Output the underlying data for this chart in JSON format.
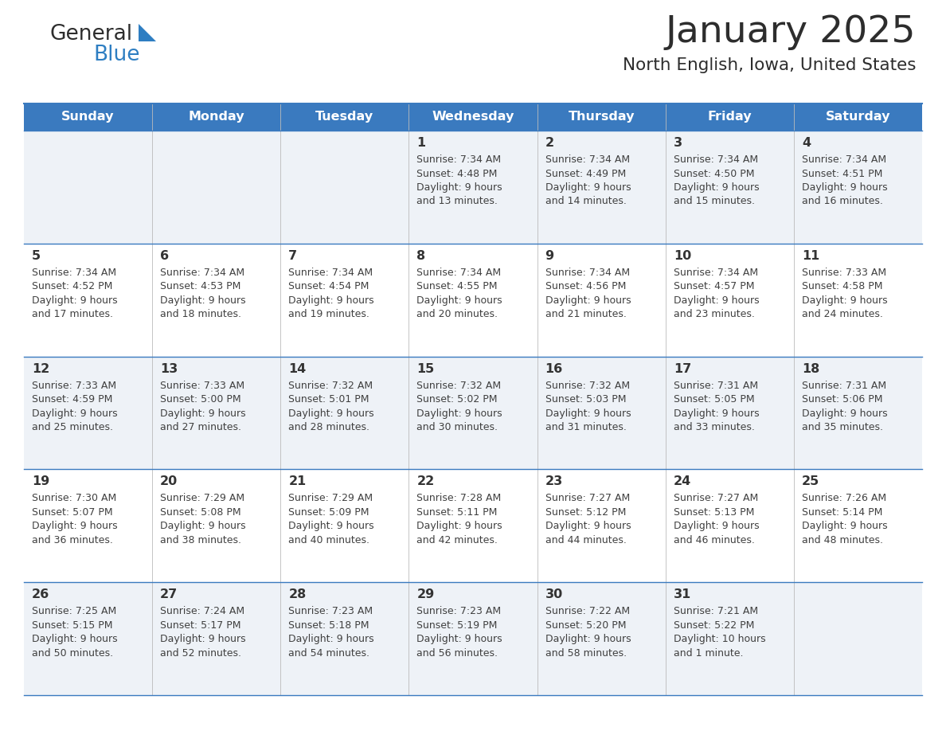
{
  "title": "January 2025",
  "subtitle": "North English, Iowa, United States",
  "header_bg": "#3a7abf",
  "header_text_color": "#ffffff",
  "row0_bg": "#eef2f7",
  "row1_bg": "#ffffff",
  "border_color": "#3a7abf",
  "text_color": "#404040",
  "day_number_color": "#333333",
  "days_of_week": [
    "Sunday",
    "Monday",
    "Tuesday",
    "Wednesday",
    "Thursday",
    "Friday",
    "Saturday"
  ],
  "weeks": [
    [
      {
        "day": "",
        "sunrise": "",
        "sunset": "",
        "daylight": ""
      },
      {
        "day": "",
        "sunrise": "",
        "sunset": "",
        "daylight": ""
      },
      {
        "day": "",
        "sunrise": "",
        "sunset": "",
        "daylight": ""
      },
      {
        "day": "1",
        "sunrise": "7:34 AM",
        "sunset": "4:48 PM",
        "daylight": "9 hours",
        "daylight2": "and 13 minutes."
      },
      {
        "day": "2",
        "sunrise": "7:34 AM",
        "sunset": "4:49 PM",
        "daylight": "9 hours",
        "daylight2": "and 14 minutes."
      },
      {
        "day": "3",
        "sunrise": "7:34 AM",
        "sunset": "4:50 PM",
        "daylight": "9 hours",
        "daylight2": "and 15 minutes."
      },
      {
        "day": "4",
        "sunrise": "7:34 AM",
        "sunset": "4:51 PM",
        "daylight": "9 hours",
        "daylight2": "and 16 minutes."
      }
    ],
    [
      {
        "day": "5",
        "sunrise": "7:34 AM",
        "sunset": "4:52 PM",
        "daylight": "9 hours",
        "daylight2": "and 17 minutes."
      },
      {
        "day": "6",
        "sunrise": "7:34 AM",
        "sunset": "4:53 PM",
        "daylight": "9 hours",
        "daylight2": "and 18 minutes."
      },
      {
        "day": "7",
        "sunrise": "7:34 AM",
        "sunset": "4:54 PM",
        "daylight": "9 hours",
        "daylight2": "and 19 minutes."
      },
      {
        "day": "8",
        "sunrise": "7:34 AM",
        "sunset": "4:55 PM",
        "daylight": "9 hours",
        "daylight2": "and 20 minutes."
      },
      {
        "day": "9",
        "sunrise": "7:34 AM",
        "sunset": "4:56 PM",
        "daylight": "9 hours",
        "daylight2": "and 21 minutes."
      },
      {
        "day": "10",
        "sunrise": "7:34 AM",
        "sunset": "4:57 PM",
        "daylight": "9 hours",
        "daylight2": "and 23 minutes."
      },
      {
        "day": "11",
        "sunrise": "7:33 AM",
        "sunset": "4:58 PM",
        "daylight": "9 hours",
        "daylight2": "and 24 minutes."
      }
    ],
    [
      {
        "day": "12",
        "sunrise": "7:33 AM",
        "sunset": "4:59 PM",
        "daylight": "9 hours",
        "daylight2": "and 25 minutes."
      },
      {
        "day": "13",
        "sunrise": "7:33 AM",
        "sunset": "5:00 PM",
        "daylight": "9 hours",
        "daylight2": "and 27 minutes."
      },
      {
        "day": "14",
        "sunrise": "7:32 AM",
        "sunset": "5:01 PM",
        "daylight": "9 hours",
        "daylight2": "and 28 minutes."
      },
      {
        "day": "15",
        "sunrise": "7:32 AM",
        "sunset": "5:02 PM",
        "daylight": "9 hours",
        "daylight2": "and 30 minutes."
      },
      {
        "day": "16",
        "sunrise": "7:32 AM",
        "sunset": "5:03 PM",
        "daylight": "9 hours",
        "daylight2": "and 31 minutes."
      },
      {
        "day": "17",
        "sunrise": "7:31 AM",
        "sunset": "5:05 PM",
        "daylight": "9 hours",
        "daylight2": "and 33 minutes."
      },
      {
        "day": "18",
        "sunrise": "7:31 AM",
        "sunset": "5:06 PM",
        "daylight": "9 hours",
        "daylight2": "and 35 minutes."
      }
    ],
    [
      {
        "day": "19",
        "sunrise": "7:30 AM",
        "sunset": "5:07 PM",
        "daylight": "9 hours",
        "daylight2": "and 36 minutes."
      },
      {
        "day": "20",
        "sunrise": "7:29 AM",
        "sunset": "5:08 PM",
        "daylight": "9 hours",
        "daylight2": "and 38 minutes."
      },
      {
        "day": "21",
        "sunrise": "7:29 AM",
        "sunset": "5:09 PM",
        "daylight": "9 hours",
        "daylight2": "and 40 minutes."
      },
      {
        "day": "22",
        "sunrise": "7:28 AM",
        "sunset": "5:11 PM",
        "daylight": "9 hours",
        "daylight2": "and 42 minutes."
      },
      {
        "day": "23",
        "sunrise": "7:27 AM",
        "sunset": "5:12 PM",
        "daylight": "9 hours",
        "daylight2": "and 44 minutes."
      },
      {
        "day": "24",
        "sunrise": "7:27 AM",
        "sunset": "5:13 PM",
        "daylight": "9 hours",
        "daylight2": "and 46 minutes."
      },
      {
        "day": "25",
        "sunrise": "7:26 AM",
        "sunset": "5:14 PM",
        "daylight": "9 hours",
        "daylight2": "and 48 minutes."
      }
    ],
    [
      {
        "day": "26",
        "sunrise": "7:25 AM",
        "sunset": "5:15 PM",
        "daylight": "9 hours",
        "daylight2": "and 50 minutes."
      },
      {
        "day": "27",
        "sunrise": "7:24 AM",
        "sunset": "5:17 PM",
        "daylight": "9 hours",
        "daylight2": "and 52 minutes."
      },
      {
        "day": "28",
        "sunrise": "7:23 AM",
        "sunset": "5:18 PM",
        "daylight": "9 hours",
        "daylight2": "and 54 minutes."
      },
      {
        "day": "29",
        "sunrise": "7:23 AM",
        "sunset": "5:19 PM",
        "daylight": "9 hours",
        "daylight2": "and 56 minutes."
      },
      {
        "day": "30",
        "sunrise": "7:22 AM",
        "sunset": "5:20 PM",
        "daylight": "9 hours",
        "daylight2": "and 58 minutes."
      },
      {
        "day": "31",
        "sunrise": "7:21 AM",
        "sunset": "5:22 PM",
        "daylight": "10 hours",
        "daylight2": "and 1 minute."
      },
      {
        "day": "",
        "sunrise": "",
        "sunset": "",
        "daylight": "",
        "daylight2": ""
      }
    ]
  ],
  "logo_general_color": "#2d2d2d",
  "logo_blue_color": "#2e7ec2"
}
